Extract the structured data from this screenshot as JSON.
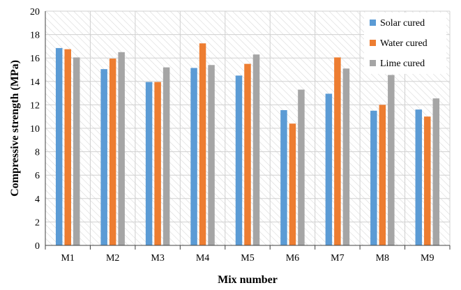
{
  "chart_data": {
    "type": "bar",
    "categories": [
      "M1",
      "M2",
      "M3",
      "M4",
      "M5",
      "M6",
      "M7",
      "M8",
      "M9"
    ],
    "series": [
      {
        "name": "Solar cured",
        "color": "#5B9BD5",
        "values": [
          16.85,
          15.05,
          13.95,
          15.15,
          14.5,
          11.55,
          12.95,
          11.5,
          11.6
        ]
      },
      {
        "name": "Water cured",
        "color": "#ED7D31",
        "values": [
          16.75,
          15.95,
          13.95,
          17.25,
          15.5,
          10.4,
          16.05,
          12.0,
          11.0
        ]
      },
      {
        "name": "Lime cured",
        "color": "#A5A5A5",
        "values": [
          16.05,
          16.5,
          15.2,
          15.4,
          16.3,
          13.3,
          15.1,
          14.55,
          12.55
        ]
      }
    ],
    "xlabel": "Mix number",
    "ylabel": "Compressive strength (MPa)",
    "ylim": [
      0,
      20
    ],
    "yticks": [
      0,
      2,
      4,
      6,
      8,
      10,
      12,
      14,
      16,
      18,
      20
    ],
    "grid": true,
    "legend_position": "top-right"
  }
}
